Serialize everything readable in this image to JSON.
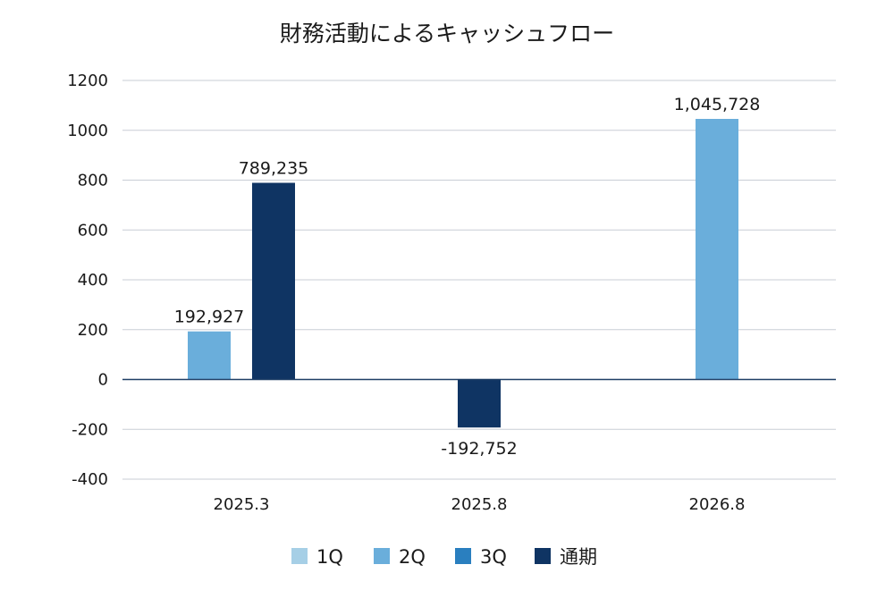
{
  "chart_data": {
    "type": "bar",
    "title": "財務活動によるキャッシュフロー",
    "categories": [
      "2025.3",
      "2025.8",
      "2026.8"
    ],
    "ylim": [
      -400,
      1200
    ],
    "yticks": [
      1200,
      1000,
      800,
      600,
      400,
      200,
      0,
      -200,
      -400
    ],
    "grid": true,
    "legend_position": "bottom",
    "series": [
      {
        "name": "1Q",
        "color": "#a6cfe6",
        "values": [
          null,
          null,
          null
        ],
        "labels": [
          "",
          "",
          ""
        ]
      },
      {
        "name": "2Q",
        "color": "#6aaedb",
        "values": [
          192.927,
          null,
          1045.728
        ],
        "labels": [
          "192,927",
          "",
          "1,045,728"
        ]
      },
      {
        "name": "3Q",
        "color": "#2a7fbf",
        "values": [
          null,
          null,
          null
        ],
        "labels": [
          "",
          "",
          ""
        ]
      },
      {
        "name": "通期",
        "color": "#0f3463",
        "values": [
          789.235,
          -192.752,
          null
        ],
        "labels": [
          "789,235",
          "-192,752",
          ""
        ]
      }
    ]
  }
}
